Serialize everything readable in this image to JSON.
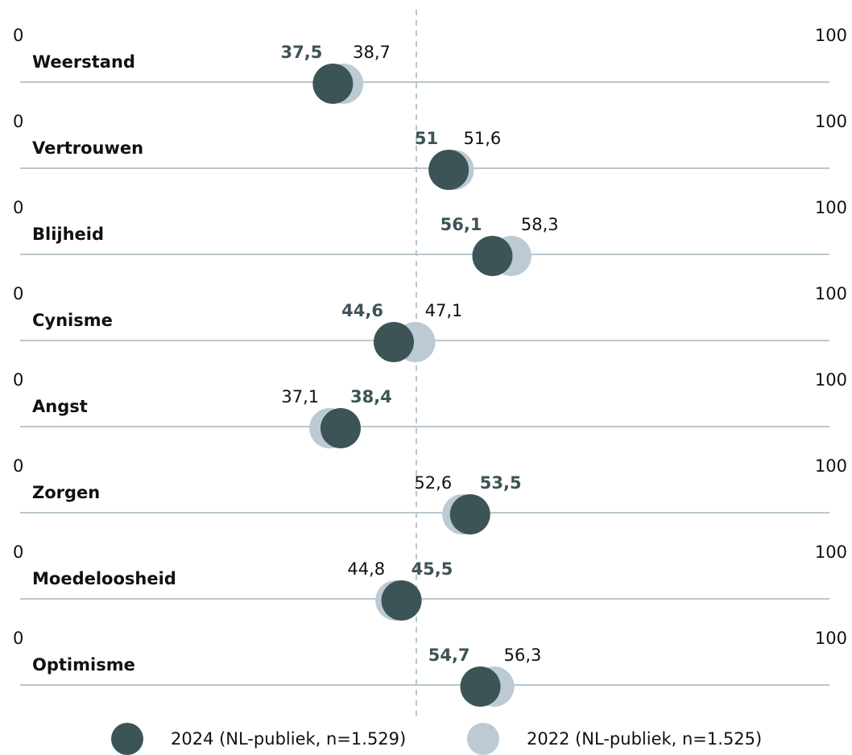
{
  "chart_data": {
    "type": "dot",
    "categories": [
      "Weerstand",
      "Vertrouwen",
      "Blijheid",
      "Cynisme",
      "Angst",
      "Zorgen",
      "Moedeloosheid",
      "Optimisme"
    ],
    "series": [
      {
        "name": "2024 (NL-publiek, n=1.529)",
        "color": "#3d5457",
        "values": [
          37.5,
          51,
          56.1,
          44.6,
          38.4,
          53.5,
          45.5,
          54.7
        ],
        "value_labels": [
          "37,5",
          "51",
          "56,1",
          "44,6",
          "38,4",
          "53,5",
          "45,5",
          "54,7"
        ]
      },
      {
        "name": "2022 (NL-publiek, n=1.525)",
        "color": "#bccad6",
        "values": [
          38.7,
          51.6,
          58.3,
          47.1,
          37.1,
          52.6,
          44.8,
          56.3
        ],
        "value_labels": [
          "38,7",
          "51,6",
          "58,3",
          "47,1",
          "37,1",
          "52,6",
          "44,8",
          "56,3"
        ]
      }
    ],
    "xlim": [
      0,
      100
    ],
    "xticks": [
      0,
      100
    ]
  }
}
